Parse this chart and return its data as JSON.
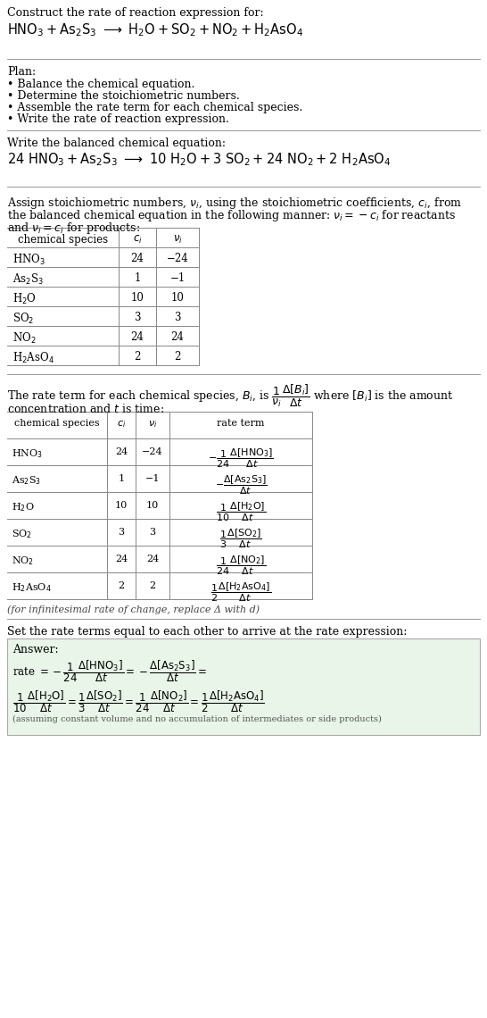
{
  "bg_color": "#ffffff",
  "text_color": "#000000",
  "plan_items": [
    "• Balance the chemical equation.",
    "• Determine the stoichiometric numbers.",
    "• Assemble the rate term for each chemical species.",
    "• Write the rate of reaction expression."
  ],
  "table1_species": [
    "HNO$_3$",
    "As$_2$S$_3$",
    "H$_2$O",
    "SO$_2$",
    "NO$_2$",
    "H$_2$AsO$_4$"
  ],
  "table1_ci": [
    "24",
    "1",
    "10",
    "3",
    "24",
    "2"
  ],
  "table1_nu": [
    "−24",
    "−1",
    "10",
    "3",
    "24",
    "2"
  ],
  "table2_species": [
    "HNO$_3$",
    "As$_2$S$_3$",
    "H$_2$O",
    "SO$_2$",
    "NO$_2$",
    "H$_2$AsO$_4$"
  ],
  "table2_ci": [
    "24",
    "1",
    "10",
    "3",
    "24",
    "2"
  ],
  "table2_nu": [
    "−24",
    "−1",
    "10",
    "3",
    "24",
    "2"
  ],
  "infinitesimal_note": "(for infinitesimal rate of change, replace Δ with d)",
  "set_rate_text": "Set the rate terms equal to each other to arrive at the rate expression:",
  "answer_note": "(assuming constant volume and no accumulation of intermediates or side products)",
  "answer_box_color": "#e8f5e8"
}
